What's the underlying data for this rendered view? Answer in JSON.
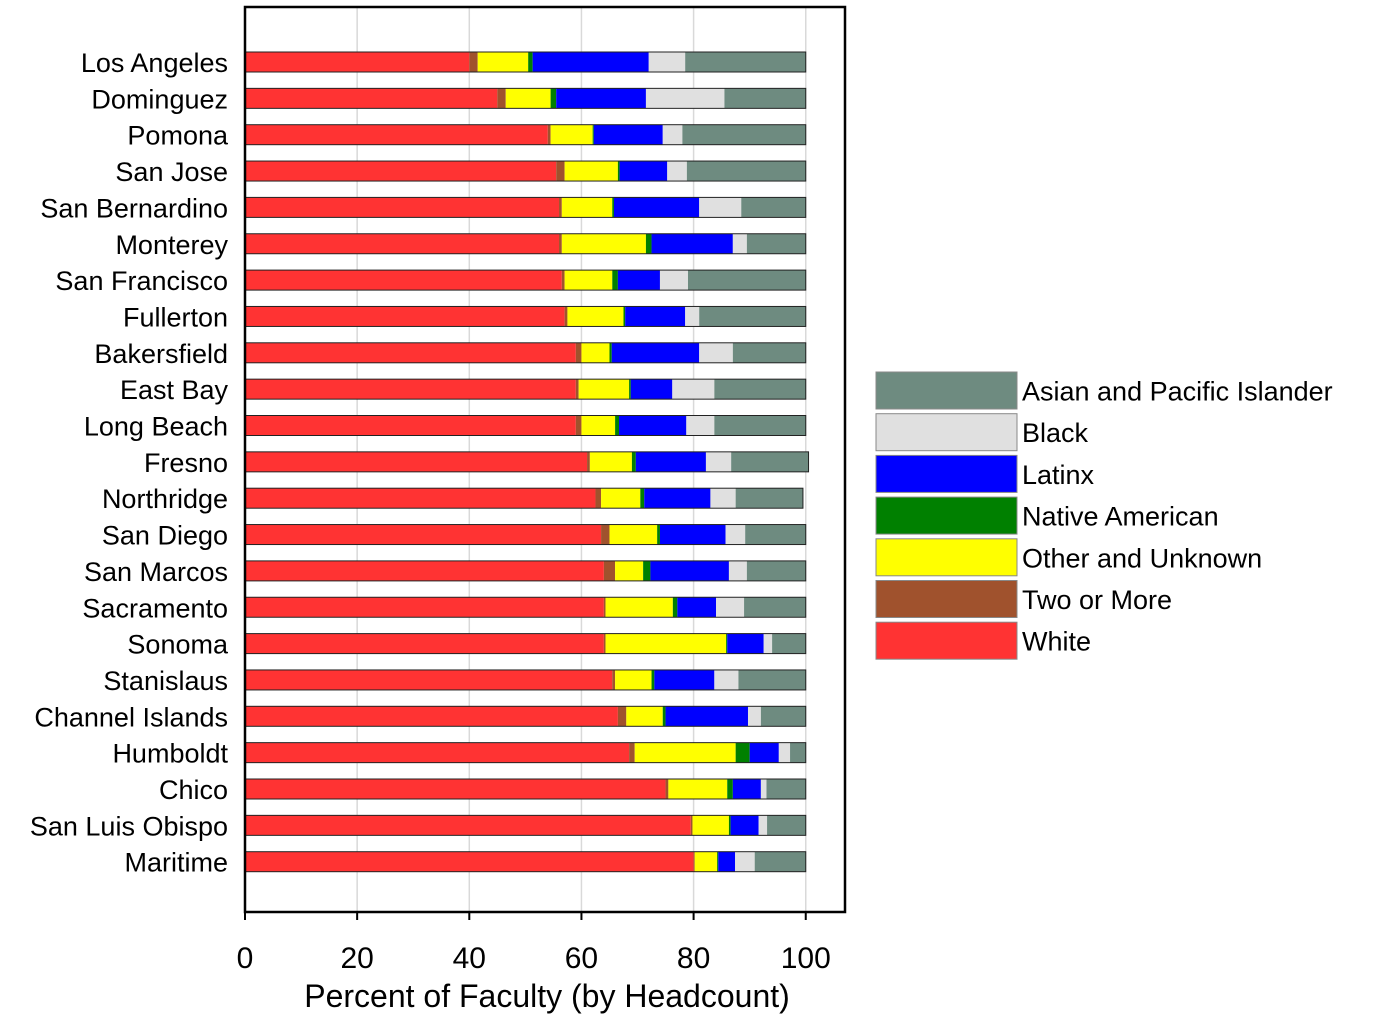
{
  "chart_data": {
    "type": "bar",
    "orientation": "horizontal",
    "stacked": true,
    "title": "",
    "xlabel": "Percent of Faculty (by Headcount)",
    "ylabel": "",
    "xlim": [
      0,
      107
    ],
    "xticks": [
      0,
      20,
      40,
      60,
      80,
      100
    ],
    "grid": "vertical",
    "legend_position": "right",
    "categories": [
      "Los Angeles",
      "Dominguez",
      "Pomona",
      "San Jose",
      "San Bernardino",
      "Monterey",
      "San Francisco",
      "Fullerton",
      "Bakersfield",
      "East Bay",
      "Long Beach",
      "Fresno",
      "Northridge",
      "San Diego",
      "San Marcos",
      "Sacramento",
      "Sonoma",
      "Stanislaus",
      "Channel Islands",
      "Humboldt",
      "Chico",
      "San Luis Obispo",
      "Maritime"
    ],
    "series": [
      {
        "name": "White",
        "color": "#ff3333",
        "values": [
          40,
          45,
          54,
          55.5,
          56,
          56,
          56.5,
          57,
          59,
          59,
          59,
          61,
          62.5,
          63.5,
          64,
          64,
          64,
          65.5,
          66.5,
          68.5,
          75,
          79.5,
          80
        ]
      },
      {
        "name": "Two or More",
        "color": "#a0522d",
        "values": [
          1.5,
          1.5,
          0.5,
          1.5,
          0.5,
          0.5,
          0.5,
          0.5,
          1,
          0.5,
          1,
          0.5,
          1,
          1.5,
          2,
          0.3,
          0.3,
          0.5,
          1.5,
          1,
          0.5,
          0.3,
          0.2
        ]
      },
      {
        "name": "Other and Unknown",
        "color": "#ffff00",
        "values": [
          9,
          8,
          7.5,
          9.5,
          9,
          15,
          8.5,
          10,
          5,
          9,
          6,
          7.5,
          7,
          8.5,
          5,
          12,
          21.5,
          6.5,
          6.5,
          18,
          10.5,
          6.5,
          4
        ]
      },
      {
        "name": "Native American",
        "color": "#008000",
        "values": [
          0.8,
          1,
          0.2,
          0.3,
          0.3,
          1,
          1,
          0.3,
          0.4,
          0.3,
          0.7,
          0.7,
          0.7,
          0.5,
          1.3,
          0.8,
          0.2,
          0.5,
          0.5,
          2.5,
          1,
          0.3,
          0.2
        ]
      },
      {
        "name": "Latinx",
        "color": "#0000ff",
        "values": [
          20.7,
          16,
          12.3,
          8.5,
          15.2,
          14.5,
          7.5,
          10.7,
          15.6,
          7.4,
          12,
          12.5,
          11.8,
          11.7,
          14,
          6.9,
          6.5,
          10.7,
          14.7,
          5.2,
          5,
          5,
          3
        ]
      },
      {
        "name": "Black",
        "color": "#e0e0e0",
        "values": [
          6.5,
          14,
          3.5,
          3.5,
          7.5,
          2.5,
          5,
          2.5,
          6,
          7.5,
          5,
          4.5,
          4.5,
          3.5,
          3.2,
          5,
          1.5,
          4.3,
          2.3,
          2,
          1,
          1.5,
          3.5
        ]
      },
      {
        "name": "Asian and Pacific Islander",
        "color": "#6e8b80",
        "values": [
          21.5,
          14.5,
          22,
          21.2,
          11.5,
          10.5,
          21,
          19,
          13,
          16.3,
          16.3,
          13.8,
          12,
          10.8,
          10.5,
          11,
          6,
          12,
          8,
          2.8,
          7,
          6.9,
          9.1
        ]
      }
    ]
  }
}
